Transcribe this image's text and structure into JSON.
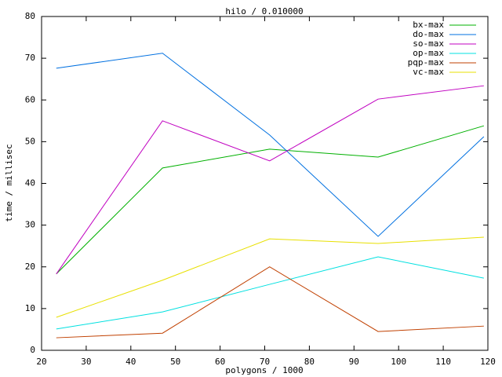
{
  "chart_data": {
    "type": "line",
    "title": "hilo / 0.010000",
    "x_label": "polygons / 1000",
    "y_label": "time / millisec",
    "x": [
      23.3,
      47.1,
      71.1,
      95.4,
      119.1
    ],
    "series": [
      {
        "name": "bx-max",
        "color": "#00b000",
        "values": [
          18.3,
          43.7,
          48.2,
          46.3,
          53.8
        ]
      },
      {
        "name": "do-max",
        "color": "#0070e0",
        "values": [
          67.6,
          71.2,
          51.6,
          27.3,
          51.2
        ]
      },
      {
        "name": "so-max",
        "color": "#c000c0",
        "values": [
          18.3,
          55.0,
          45.4,
          60.2,
          63.4
        ]
      },
      {
        "name": "op-max",
        "color": "#00e0e0",
        "values": [
          5.1,
          9.2,
          15.8,
          22.4,
          17.3
        ]
      },
      {
        "name": "pqp-max",
        "color": "#c04000",
        "values": [
          3.0,
          4.1,
          20.0,
          4.5,
          5.8
        ]
      },
      {
        "name": "vc-max",
        "color": "#e8e000",
        "values": [
          7.9,
          16.8,
          26.7,
          25.6,
          27.1
        ]
      }
    ],
    "xlim": [
      20,
      120
    ],
    "xticks": [
      20,
      30,
      40,
      50,
      60,
      70,
      80,
      90,
      100,
      110,
      120
    ],
    "ylim": [
      0,
      80
    ],
    "yticks": [
      0,
      10,
      20,
      30,
      40,
      50,
      60,
      70,
      80
    ],
    "grid": false,
    "legend": "top-right"
  }
}
